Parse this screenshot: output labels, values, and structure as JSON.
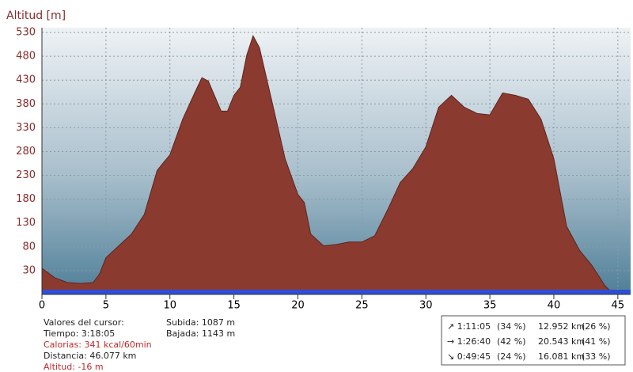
{
  "chart_data": {
    "type": "area",
    "ylabel": "Altitud [m]",
    "color": "#8b3a30",
    "x": [
      0,
      1,
      2,
      3,
      4,
      4.5,
      5,
      6,
      7,
      8,
      9,
      9.5,
      10,
      11,
      12,
      12.5,
      13,
      14,
      14.5,
      15,
      15.5,
      16,
      16.5,
      17,
      18,
      19,
      20,
      20.5,
      21,
      22,
      23,
      24,
      25,
      26,
      27,
      28,
      29,
      30,
      31,
      32,
      33,
      34,
      35,
      36,
      37,
      38,
      39,
      40,
      41,
      42,
      43,
      44,
      44.5,
      45
    ],
    "values": [
      35,
      15,
      5,
      3,
      5,
      23,
      57,
      82,
      107,
      148,
      240,
      257,
      273,
      348,
      407,
      435,
      428,
      365,
      365,
      398,
      415,
      482,
      523,
      498,
      382,
      265,
      190,
      173,
      107,
      82,
      85,
      90,
      90,
      103,
      157,
      215,
      245,
      290,
      373,
      398,
      373,
      360,
      357,
      403,
      398,
      390,
      348,
      265,
      123,
      73,
      40,
      -2,
      -15,
      -18
    ],
    "xlim": [
      0,
      46
    ],
    "ylim": [
      -20,
      540
    ],
    "xticks": [
      0,
      5,
      10,
      15,
      20,
      25,
      30,
      35,
      40,
      45
    ],
    "yticks": [
      30,
      80,
      130,
      180,
      230,
      280,
      330,
      380,
      430,
      480,
      530
    ],
    "grid": true
  },
  "cursor": {
    "title": "Valores del cursor:",
    "time": "Tiempo: 3:18:05",
    "calories": "Calorias: 341 kcal/60min",
    "distance": "Distancia: 46.077 km",
    "altitude": "Altitud: -16 m"
  },
  "totals": {
    "ascent": "Subida: 1087 m",
    "descent": "Bajada: 1143 m"
  },
  "summary": {
    "rows": [
      [
        "↗ 1:11:05",
        "(34 %)",
        "12.952 km",
        "(26 %)"
      ],
      [
        "→ 1:26:40",
        "(42 %)",
        "20.543 km",
        "(41 %)"
      ],
      [
        "↘ 0:49:45",
        "(24 %)",
        "16.081 km",
        "(33 %)"
      ]
    ]
  }
}
